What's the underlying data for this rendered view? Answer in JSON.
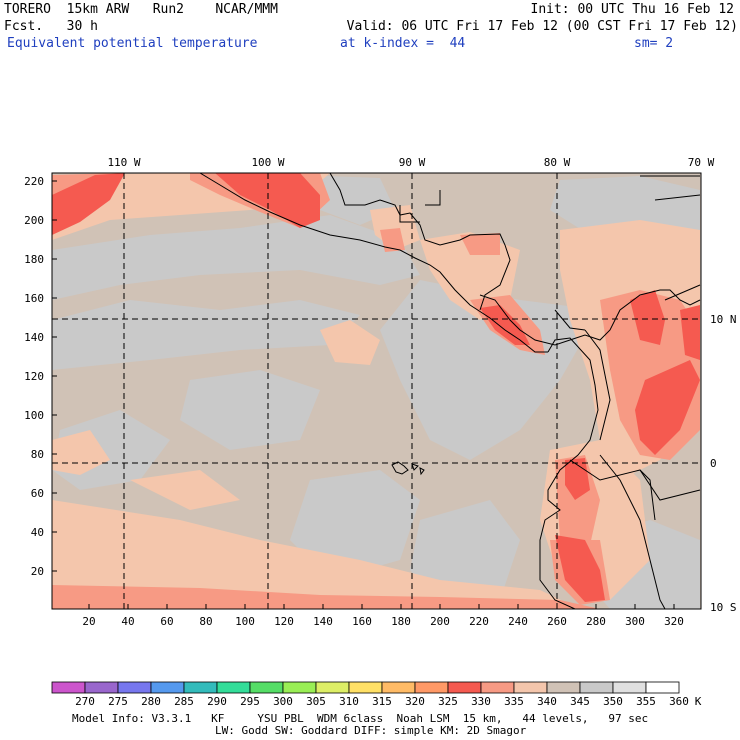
{
  "header": {
    "line1_left": "TORERO  15km ARW   Run2    NCAR/MMM",
    "line1_right": "Init: 00 UTC Thu 16 Feb 12",
    "line2_left": "Fcst.   30 h",
    "line2_right": "Valid: 06 UTC Fri 17 Feb 12 (00 CST Fri 17 Feb 12)",
    "line3_field": "Equivalent potential temperature",
    "line3_level": "at k-index =  44",
    "line3_smooth": "sm= 2"
  },
  "map": {
    "top_lon_labels": [
      "110 W",
      "100 W",
      "90 W",
      "80 W",
      "70 W"
    ],
    "right_lat_labels": [
      "10 N",
      "0",
      "10 S"
    ],
    "left_y_ticks": [
      "220",
      "200",
      "180",
      "160",
      "140",
      "120",
      "100",
      "80",
      "60",
      "40",
      "20"
    ],
    "bottom_x_ticks": [
      "20",
      "40",
      "60",
      "80",
      "100",
      "120",
      "140",
      "160",
      "180",
      "200",
      "220",
      "240",
      "260",
      "280",
      "300",
      "320"
    ],
    "colors": {
      "background_340_345": "#d0c2b6",
      "band_345_350": "#c9c9c9",
      "band_335_340": "#f4c6ac",
      "band_330_335": "#f79a84",
      "band_325_330": "#f55a50",
      "coast": "#000000"
    }
  },
  "colorbar": {
    "labels": [
      "270",
      "275",
      "280",
      "285",
      "290",
      "295",
      "300",
      "305",
      "310",
      "315",
      "320",
      "325",
      "330",
      "335",
      "340",
      "345",
      "350",
      "355",
      "360"
    ],
    "unit": "K",
    "colors": [
      "#cc55cc",
      "#9966cc",
      "#7777ee",
      "#5599ee",
      "#33bbbb",
      "#33dd99",
      "#55dd66",
      "#99ee55",
      "#ddee66",
      "#ffe066",
      "#ffbb66",
      "#ff9966",
      "#f55a50",
      "#f79a84",
      "#f4c6ac",
      "#d0c2b6",
      "#c9c9c9",
      "#e0e0e0",
      "#ffffff"
    ]
  },
  "footer": {
    "line1": "Model Info: V3.3.1   KF     YSU PBL  WDM 6class  Noah LSM  15 km,   44 levels,   97 sec",
    "line2": "LW: Godd SW: Goddard DIFF: simple KM: 2D Smagor"
  }
}
